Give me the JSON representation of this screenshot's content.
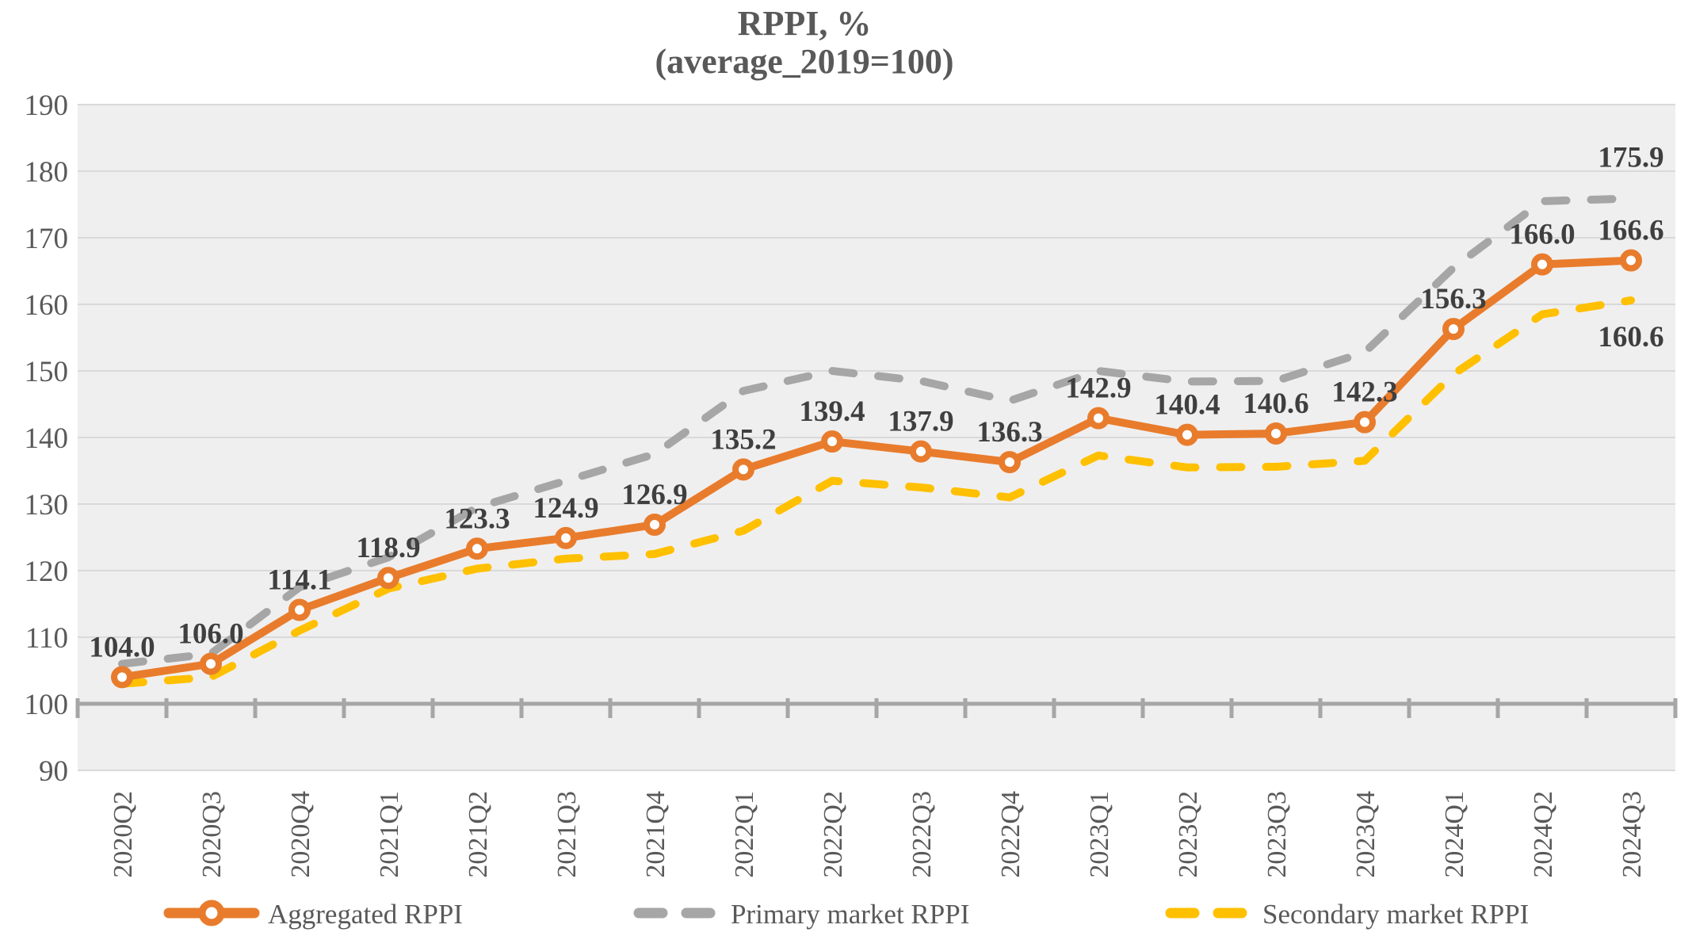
{
  "chart_data": {
    "type": "line",
    "title": "RPPI, %",
    "subtitle": "(average_2019=100)",
    "categories": [
      "2020Q2",
      "2020Q3",
      "2020Q4",
      "2021Q1",
      "2021Q2",
      "2021Q3",
      "2021Q4",
      "2022Q1",
      "2022Q2",
      "2022Q3",
      "2022Q4",
      "2023Q1",
      "2023Q2",
      "2023Q3",
      "2023Q4",
      "2024Q1",
      "2024Q2",
      "2024Q3"
    ],
    "series": [
      {
        "name": "Aggregated RPPI",
        "color": "#E87C2C",
        "line_style": "solid",
        "markers": true,
        "data_labels": true,
        "values": [
          104.0,
          106.0,
          114.1,
          118.9,
          123.3,
          124.9,
          126.9,
          135.2,
          139.4,
          137.9,
          136.3,
          142.9,
          140.4,
          140.6,
          142.3,
          156.3,
          166.0,
          166.6
        ]
      },
      {
        "name": "Primary market RPPI",
        "color": "#A6A6A6",
        "line_style": "dashed",
        "markers": false,
        "data_labels": false,
        "last_point_label": "175.9",
        "last_label_color": "#404040",
        "values": [
          106.0,
          107.5,
          117.5,
          122.0,
          129.5,
          133.5,
          137.5,
          147.0,
          150.0,
          148.5,
          145.5,
          150.0,
          148.4,
          148.5,
          152.8,
          165.5,
          175.5,
          175.9
        ]
      },
      {
        "name": "Secondary market RPPI",
        "color": "#FFC000",
        "line_style": "dashed",
        "markers": false,
        "data_labels": false,
        "last_point_label": "160.6",
        "last_label_color": "#FFC000",
        "values": [
          103.0,
          104.0,
          111.0,
          117.3,
          120.3,
          121.8,
          122.5,
          126.0,
          133.5,
          132.5,
          131.0,
          137.3,
          135.5,
          135.6,
          136.5,
          149.5,
          158.5,
          160.6
        ]
      }
    ],
    "ylim": [
      90,
      190
    ],
    "yticks": [
      90,
      100,
      110,
      120,
      130,
      140,
      150,
      160,
      170,
      180,
      190
    ],
    "baseline_value": 100,
    "grid": true,
    "legend_position": "bottom",
    "plot_bg": "#F0EFEF",
    "grid_color": "#D9D9D9",
    "axis_color": "#A6A6A6",
    "tick_label_color": "#595959",
    "data_label_color": "#3F3F3F"
  }
}
